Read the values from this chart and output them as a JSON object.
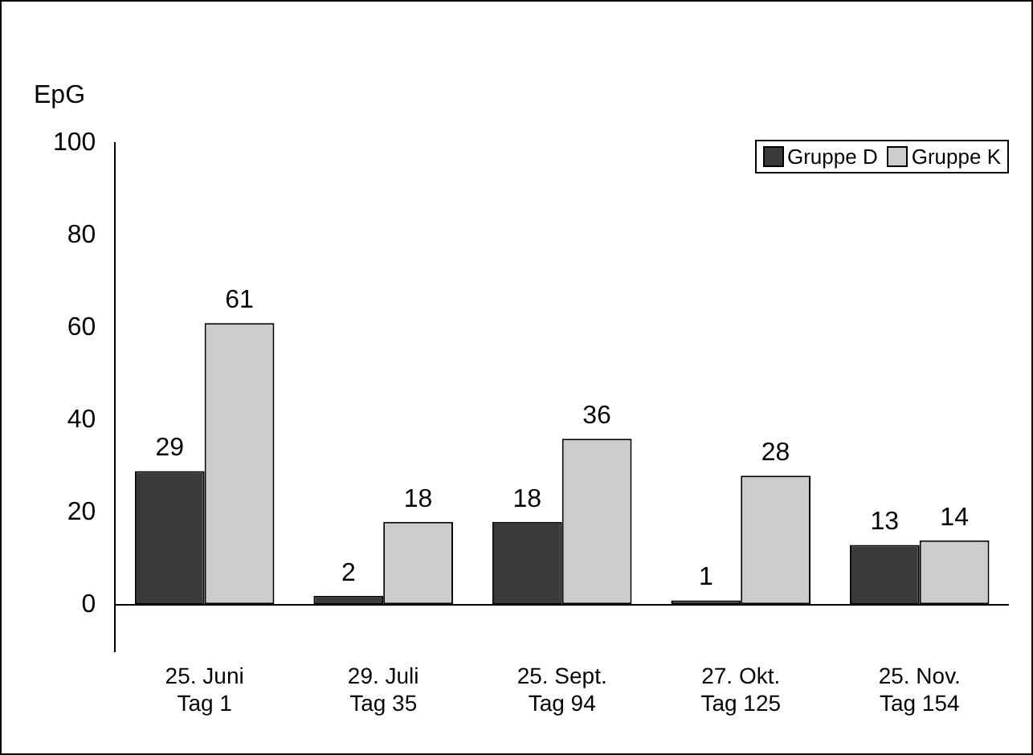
{
  "chart_data": {
    "type": "bar",
    "ylabel": "EpG",
    "categories": [
      "25. Juni\nTag 1",
      "29. Juli\nTag 35",
      "25. Sept.\nTag 94",
      "27. Okt.\nTag 125",
      "25. Nov.\nTag 154"
    ],
    "series": [
      {
        "name": "Gruppe D",
        "color": "#3a3a3a",
        "values": [
          29,
          2,
          18,
          1,
          13
        ]
      },
      {
        "name": "Gruppe K",
        "color": "#cccccc",
        "values": [
          61,
          18,
          36,
          28,
          14
        ]
      }
    ],
    "ylim": [
      -10,
      100
    ],
    "yticks": [
      0,
      20,
      40,
      60,
      80,
      100
    ],
    "grid": false,
    "legend": "top right",
    "data_labels": true
  }
}
